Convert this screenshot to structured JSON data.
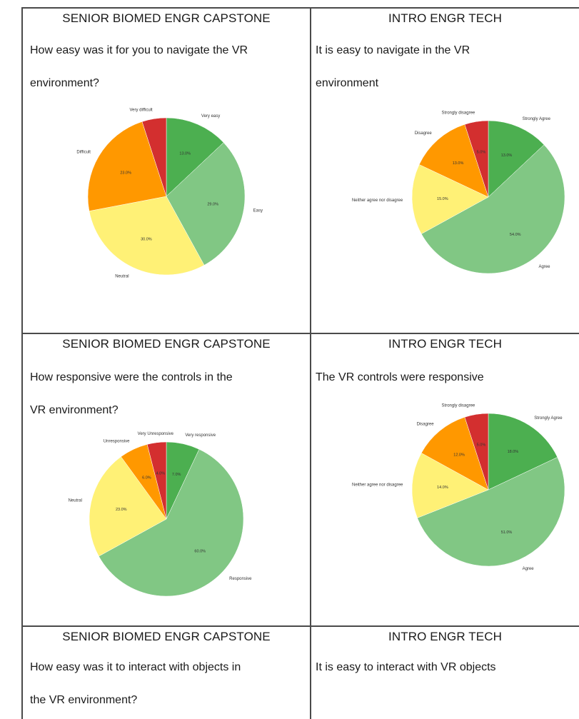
{
  "cells": [
    {
      "course": "SENIOR BIOMED ENGR CAPSTONE",
      "q1": "How easy was it for you to navigate the VR",
      "q2": "environment?"
    },
    {
      "course": "INTRO ENGR TECH",
      "q1": "It is easy to navigate in the VR",
      "q2": "environment"
    },
    {
      "course": "SENIOR BIOMED ENGR CAPSTONE",
      "q1": "How responsive were the controls in the",
      "q2": "VR environment?"
    },
    {
      "course": "INTRO ENGR TECH",
      "q1": "The VR controls were responsive",
      "q2": ""
    },
    {
      "course": "SENIOR BIOMED ENGR CAPSTONE",
      "q1": "How easy was it to interact with objects in",
      "q2": "the VR environment?"
    },
    {
      "course": "INTRO ENGR TECH",
      "q1": "It is easy to interact with VR objects",
      "q2": ""
    }
  ],
  "chart_data": [
    {
      "type": "pie",
      "title": "",
      "labels": [
        "Very easy",
        "Easy",
        "Neutral",
        "Difficult",
        "Very difficult"
      ],
      "values": [
        13.0,
        29.0,
        30.0,
        23.0,
        5.0
      ],
      "data_labels": [
        "13.0%",
        "29.0%",
        "30.0%",
        "23.0%",
        ""
      ],
      "colors": [
        "#4caf50",
        "#81c784",
        "#fff176",
        "#ff9800",
        "#d32f2f"
      ]
    },
    {
      "type": "pie",
      "title": "",
      "labels": [
        "Strongly Agree",
        "Agree",
        "Neither agree nor disagree",
        "Disagree",
        "Strongly disagree"
      ],
      "values": [
        13.0,
        54.0,
        15.0,
        13.0,
        5.0
      ],
      "data_labels": [
        "13.0%",
        "54.0%",
        "15.0%",
        "13.0%",
        "5.0%"
      ],
      "colors": [
        "#4caf50",
        "#81c784",
        "#fff176",
        "#ff9800",
        "#d32f2f"
      ]
    },
    {
      "type": "pie",
      "title": "",
      "labels": [
        "Very responsive",
        "Responsive",
        "Neutral",
        "Unresponsive",
        "Very Unresponsive"
      ],
      "values": [
        7.0,
        60.0,
        23.0,
        6.0,
        4.0
      ],
      "data_labels": [
        "7.0%",
        "60.0%",
        "23.0%",
        "6.0%",
        "4.0%"
      ],
      "colors": [
        "#4caf50",
        "#81c784",
        "#fff176",
        "#ff9800",
        "#d32f2f"
      ]
    },
    {
      "type": "pie",
      "title": "",
      "labels": [
        "Strongly Agree",
        "Agree",
        "Neither agree nor disagree",
        "Disagree",
        "Strongly disagree"
      ],
      "values": [
        18.0,
        51.0,
        14.0,
        12.0,
        5.0
      ],
      "data_labels": [
        "18.0%",
        "51.0%",
        "14.0%",
        "12.0%",
        "5.0%"
      ],
      "colors": [
        "#4caf50",
        "#81c784",
        "#fff176",
        "#ff9800",
        "#d32f2f"
      ]
    }
  ]
}
